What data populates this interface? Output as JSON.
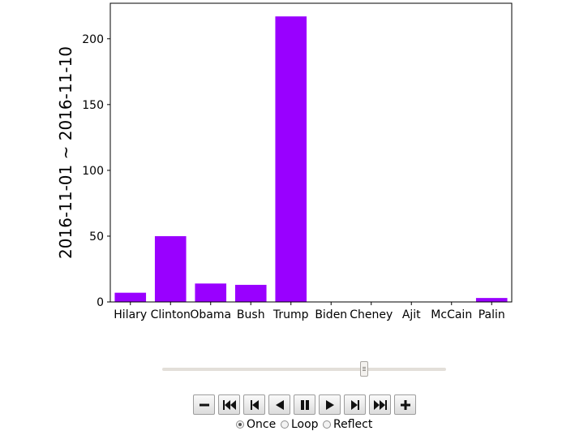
{
  "chart_data": {
    "type": "bar",
    "categories": [
      "Hilary",
      "Clinton",
      "Obama",
      "Bush",
      "Trump",
      "Biden",
      "Cheney",
      "Ajit",
      "McCain",
      "Palin"
    ],
    "values": [
      7,
      50,
      14,
      13,
      217,
      0,
      0,
      0,
      0,
      3
    ],
    "ylabel": "2016-11-01 ~ 2016-11-10",
    "xlabel": "",
    "title": "",
    "ylim": [
      0,
      227
    ],
    "yticks": [
      0,
      50,
      100,
      150,
      200
    ],
    "bar_color": "#9900ff",
    "grid": false
  },
  "animation": {
    "slider_value": 0.71,
    "buttons": [
      {
        "name": "decrease-speed-button",
        "icon": "minus-icon"
      },
      {
        "name": "first-frame-button",
        "icon": "skip-first-icon"
      },
      {
        "name": "previous-frame-button",
        "icon": "step-back-icon"
      },
      {
        "name": "play-reverse-button",
        "icon": "play-reverse-icon"
      },
      {
        "name": "pause-button",
        "icon": "pause-icon"
      },
      {
        "name": "play-button",
        "icon": "play-icon"
      },
      {
        "name": "next-frame-button",
        "icon": "step-forward-icon"
      },
      {
        "name": "last-frame-button",
        "icon": "skip-last-icon"
      },
      {
        "name": "increase-speed-button",
        "icon": "plus-icon"
      }
    ],
    "modes": [
      {
        "label": "Once",
        "checked": true
      },
      {
        "label": "Loop",
        "checked": false
      },
      {
        "label": "Reflect",
        "checked": false
      }
    ]
  }
}
